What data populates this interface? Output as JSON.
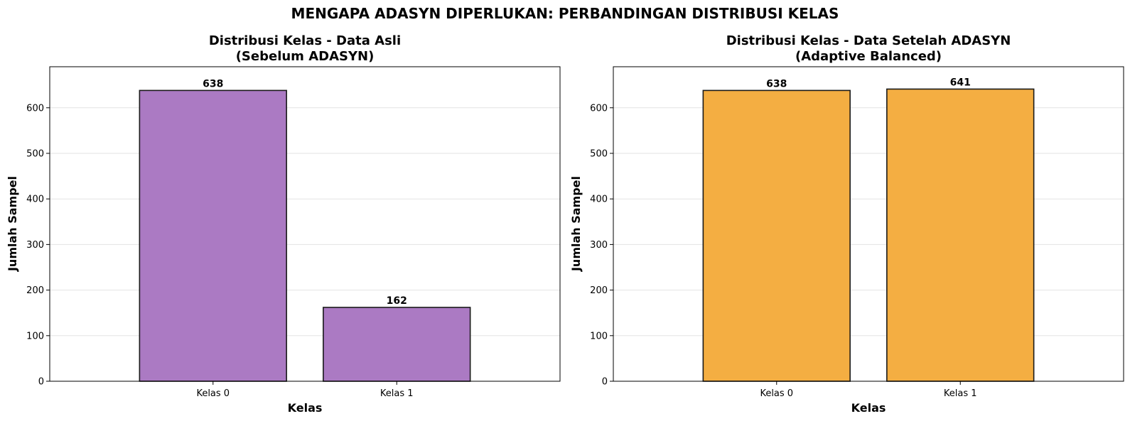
{
  "figure_title": "MENGAPA ADASYN DIPERLUKAN: PERBANDINGAN DISTRIBUSI KELAS",
  "chart_data": [
    {
      "type": "bar",
      "title_line1": "Distribusi Kelas - Data Asli",
      "title_line2": "(Sebelum ADASYN)",
      "xlabel": "Kelas",
      "ylabel": "Jumlah Sampel",
      "categories": [
        "Kelas 0",
        "Kelas 1"
      ],
      "values": [
        638,
        162
      ],
      "value_labels": [
        "638",
        "162"
      ],
      "ylim": [
        0,
        690
      ],
      "yticks": [
        0,
        100,
        200,
        300,
        400,
        500,
        600
      ],
      "ytick_labels": [
        "0",
        "100",
        "200",
        "300",
        "400",
        "500",
        "600"
      ],
      "grid": "horizontal",
      "color": "#ab7ac3"
    },
    {
      "type": "bar",
      "title_line1": "Distribusi Kelas - Data Setelah ADASYN",
      "title_line2": "(Adaptive Balanced)",
      "xlabel": "Kelas",
      "ylabel": "Jumlah Sampel",
      "categories": [
        "Kelas 0",
        "Kelas 1"
      ],
      "values": [
        638,
        641
      ],
      "value_labels": [
        "638",
        "641"
      ],
      "ylim": [
        0,
        690
      ],
      "yticks": [
        0,
        100,
        200,
        300,
        400,
        500,
        600
      ],
      "ytick_labels": [
        "0",
        "100",
        "200",
        "300",
        "400",
        "500",
        "600"
      ],
      "grid": "horizontal",
      "color": "#f4ae42"
    }
  ]
}
